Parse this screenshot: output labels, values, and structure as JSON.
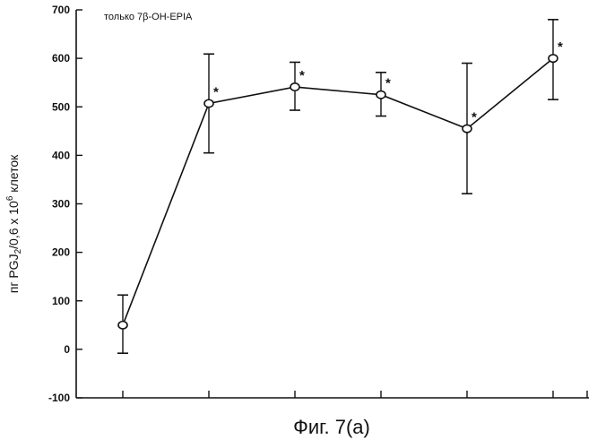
{
  "chart_data": {
    "type": "line",
    "annotation": "только 7β-OH-EPIA",
    "ylabel_parts": {
      "p1": "пг PGJ",
      "sub": "2",
      "p2": "/0,6 x 10",
      "sup": "6",
      "p3": " клеток"
    },
    "ylim": [
      -100,
      700
    ],
    "yticks": [
      -100,
      0,
      100,
      200,
      300,
      400,
      500,
      600,
      700
    ],
    "ytick_labels": [
      "-100",
      "0",
      "100",
      "200",
      "300",
      "400",
      "500",
      "600",
      "700"
    ],
    "grid": false,
    "series": [
      {
        "values": [
          50,
          507,
          541,
          525,
          455,
          600
        ],
        "err_low": [
          -8,
          405,
          493,
          481,
          321,
          515
        ],
        "err_high": [
          112,
          609,
          592,
          571,
          590,
          680
        ],
        "significance": [
          "",
          "*",
          "*",
          "*",
          "*",
          "*"
        ]
      }
    ],
    "caption": "Фиг. 7(а)"
  }
}
